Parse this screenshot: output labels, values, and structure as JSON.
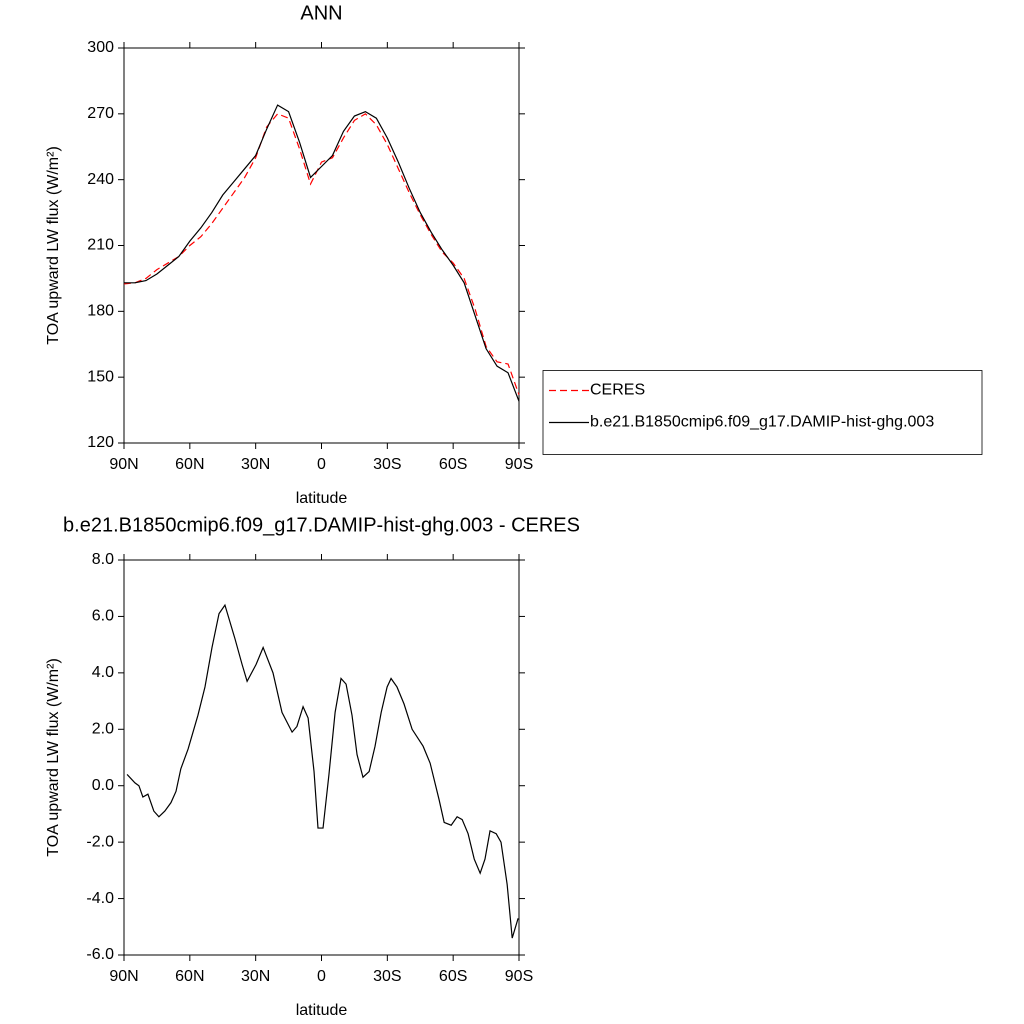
{
  "chart_data": [
    {
      "type": "line",
      "title": "ANN",
      "xlabel": "latitude",
      "ylabel": "TOA upward LW flux (W/m²)",
      "x": [
        90,
        85,
        80,
        75,
        70,
        65,
        60,
        55,
        50,
        45,
        40,
        35,
        30,
        25,
        20,
        15,
        10,
        5,
        0,
        -5,
        -10,
        -15,
        -20,
        -25,
        -30,
        -35,
        -40,
        -45,
        -50,
        -55,
        -60,
        -65,
        -70,
        -75,
        -80,
        -85,
        -90
      ],
      "series": [
        {
          "name": "CERES",
          "color": "#ff0000",
          "dash": true,
          "values": [
            192.5,
            193,
            195,
            199,
            202,
            205,
            210,
            214,
            220,
            227,
            234,
            241,
            250,
            264,
            270,
            268,
            254,
            238,
            248,
            250,
            259,
            267,
            270,
            265,
            256,
            245,
            234,
            224,
            215,
            207,
            202,
            195,
            181,
            164,
            157,
            156,
            142
          ]
        },
        {
          "name": "b.e21.B1850cmip6.f09_g17.DAMIP-hist-ghg.003",
          "color": "#000000",
          "dash": false,
          "values": [
            193,
            193,
            194,
            197,
            201,
            205,
            212,
            218,
            225,
            233,
            239,
            245,
            251,
            263,
            274,
            271,
            257,
            241,
            246,
            251,
            262,
            269,
            271,
            268,
            259,
            248,
            236,
            225,
            216,
            208,
            201,
            193,
            178,
            163,
            155,
            152,
            139
          ]
        }
      ],
      "xlim": [
        90,
        -90
      ],
      "xticks": [
        {
          "value": 90,
          "label": "90N"
        },
        {
          "value": 60,
          "label": "60N"
        },
        {
          "value": 30,
          "label": "30N"
        },
        0,
        {
          "value": -30,
          "label": "30S"
        },
        {
          "value": -60,
          "label": "60S"
        },
        {
          "value": -90,
          "label": "90S"
        }
      ],
      "ylim": [
        120,
        300
      ],
      "yticks": [
        120,
        150,
        180,
        210,
        240,
        270,
        300
      ],
      "legend": "right"
    },
    {
      "type": "line",
      "title": "b.e21.B1850cmip6.f09_g17.DAMIP-hist-ghg.003 - CERES",
      "xlabel": "latitude",
      "ylabel": "TOA upward LW flux (W/m²)",
      "x": [
        88.6,
        85.0,
        83.2,
        81.4,
        79.1,
        76.4,
        74.1,
        71.4,
        68.6,
        66.3,
        64.1,
        60.8,
        56.3,
        53.1,
        49.9,
        46.7,
        44.0,
        39.4,
        36.2,
        33.9,
        29.8,
        26.6,
        22.1,
        18.0,
        13.4,
        11.2,
        8.4,
        6.1,
        3.4,
        1.6,
        -0.7,
        -3.4,
        -6.2,
        -8.9,
        -11.2,
        -13.9,
        -16.2,
        -18.9,
        -21.7,
        -24.4,
        -27.2,
        -29.9,
        -31.7,
        -34.4,
        -37.6,
        -41.3,
        -46.3,
        -49.5,
        -53.6,
        -55.9,
        -59.1,
        -61.8,
        -64.1,
        -66.8,
        -69.6,
        -72.3,
        -74.5,
        -76.8,
        -79.6,
        -81.8,
        -84.6,
        -86.9,
        -89.6
      ],
      "series": [
        {
          "color": "#000000",
          "dash": false,
          "values": [
            0.4,
            0.1,
            0.0,
            -0.4,
            -0.3,
            -0.9,
            -1.1,
            -0.9,
            -0.6,
            -0.2,
            0.6,
            1.3,
            2.5,
            3.5,
            4.9,
            6.1,
            6.4,
            5.2,
            4.3,
            3.7,
            4.3,
            4.9,
            4.0,
            2.6,
            1.9,
            2.1,
            2.8,
            2.4,
            0.5,
            -1.5,
            -1.5,
            0.4,
            2.6,
            3.8,
            3.6,
            2.5,
            1.1,
            0.3,
            0.5,
            1.4,
            2.6,
            3.5,
            3.8,
            3.5,
            2.9,
            2.0,
            1.4,
            0.8,
            -0.5,
            -1.3,
            -1.4,
            -1.1,
            -1.2,
            -1.7,
            -2.6,
            -3.1,
            -2.6,
            -1.6,
            -1.7,
            -2.0,
            -3.5,
            -5.4,
            -4.7
          ]
        }
      ],
      "xlim": [
        90,
        -90
      ],
      "xticks": [
        {
          "value": 90,
          "label": "90N"
        },
        {
          "value": 60,
          "label": "60N"
        },
        {
          "value": 30,
          "label": "30N"
        },
        0,
        {
          "value": -30,
          "label": "30S"
        },
        {
          "value": -60,
          "label": "60S"
        },
        {
          "value": -90,
          "label": "90S"
        }
      ],
      "ylim": [
        -6,
        8
      ],
      "yticks": [
        {
          "value": -6,
          "label": "-6.0"
        },
        {
          "value": -4,
          "label": "-4.0"
        },
        {
          "value": -2,
          "label": "-2.0"
        },
        {
          "value": 0,
          "label": "0.0"
        },
        {
          "value": 2,
          "label": "2.0"
        },
        {
          "value": 4,
          "label": "4.0"
        },
        {
          "value": 6,
          "label": "6.0"
        },
        {
          "value": 8,
          "label": "8.0"
        }
      ]
    }
  ]
}
